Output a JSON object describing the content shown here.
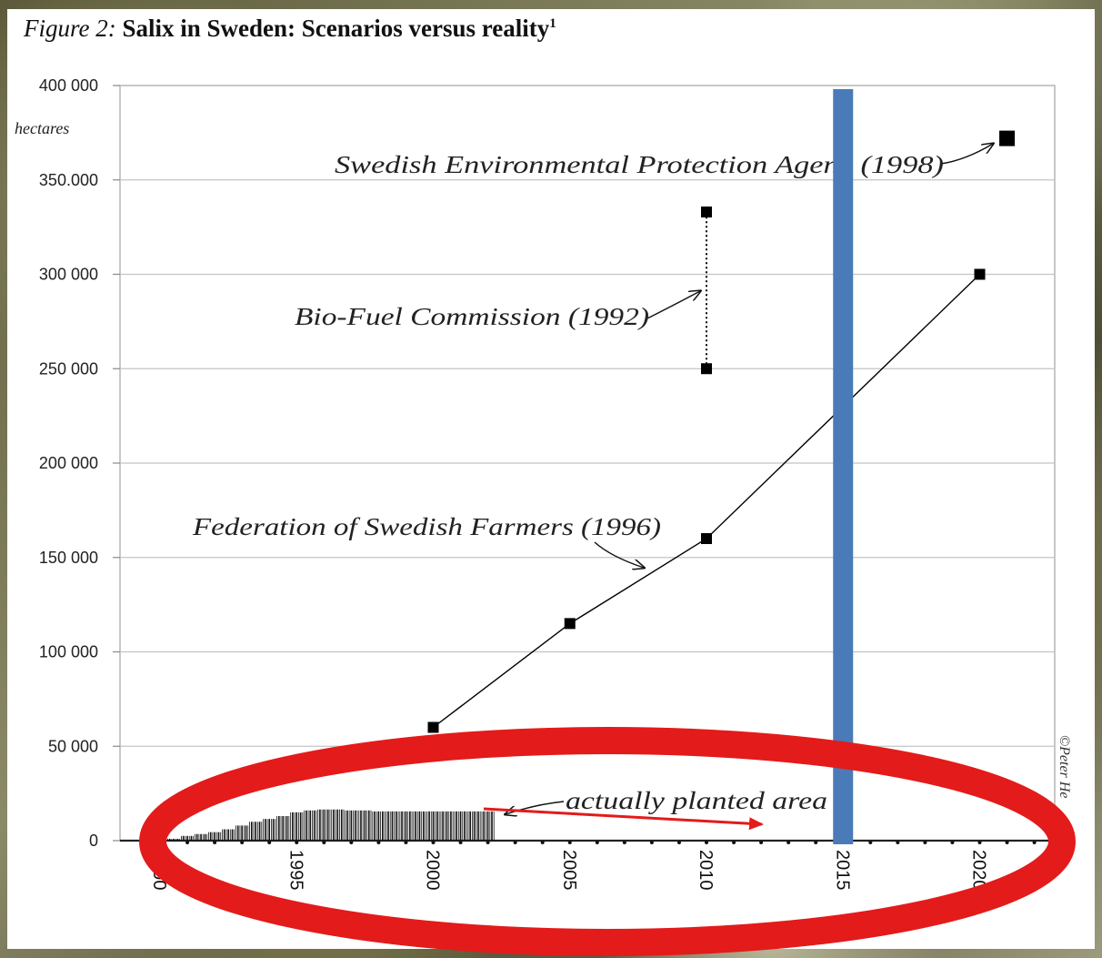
{
  "title": {
    "lead": "Figure 2:",
    "main": "Salix in Sweden: Scenarios versus reality",
    "sup": "1"
  },
  "chart_data": {
    "type": "line",
    "title": "Figure 2: Salix in Sweden: Scenarios versus reality",
    "ylabel": "hectares",
    "xlabel": "",
    "xlim": [
      1990,
      2022
    ],
    "ylim": [
      0,
      400000
    ],
    "y_ticks": [
      {
        "value": 0,
        "label": "0"
      },
      {
        "value": 50000,
        "label": "50 000"
      },
      {
        "value": 100000,
        "label": "100 000"
      },
      {
        "value": 150000,
        "label": "150 000"
      },
      {
        "value": 200000,
        "label": "200 000"
      },
      {
        "value": 250000,
        "label": "250 000"
      },
      {
        "value": 300000,
        "label": "300 000"
      },
      {
        "value": 350000,
        "label": "350.000"
      },
      {
        "value": 400000,
        "label": "400 000"
      }
    ],
    "x_ticks": [
      {
        "value": 1990,
        "label": "1990"
      },
      {
        "value": 1995,
        "label": "1995"
      },
      {
        "value": 2000,
        "label": "2000"
      },
      {
        "value": 2005,
        "label": "2005"
      },
      {
        "value": 2010,
        "label": "2010"
      },
      {
        "value": 2015,
        "label": "2015"
      },
      {
        "value": 2020,
        "label": "2020"
      }
    ],
    "grid": true,
    "series": [
      {
        "name": "Federation of Swedish Farmers (1996)",
        "type": "line",
        "color": "#000000",
        "points": [
          [
            2000,
            60000
          ],
          [
            2005,
            115000
          ],
          [
            2010,
            160000
          ],
          [
            2020,
            300000
          ]
        ]
      },
      {
        "name": "Bio-Fuel Commission (1992)",
        "type": "range",
        "color": "#000000",
        "points": [
          [
            2010,
            250000
          ],
          [
            2010,
            333000
          ]
        ]
      },
      {
        "name": "Swedish Environmental Protection Agency (1998)",
        "type": "point",
        "color": "#000000",
        "points": [
          [
            2021,
            372000
          ]
        ]
      },
      {
        "name": "actually planted area",
        "type": "bar",
        "color": "#000000",
        "points": [
          [
            1990.5,
            1000
          ],
          [
            1991,
            2500
          ],
          [
            1991.5,
            3500
          ],
          [
            1992,
            4500
          ],
          [
            1992.5,
            6000
          ],
          [
            1993,
            8000
          ],
          [
            1993.5,
            10000
          ],
          [
            1994,
            11500
          ],
          [
            1994.5,
            13000
          ],
          [
            1995,
            15000
          ],
          [
            1995.5,
            16000
          ],
          [
            1996,
            16500
          ],
          [
            1996.5,
            16500
          ],
          [
            1997,
            16000
          ],
          [
            1997.5,
            16000
          ],
          [
            1998,
            15500
          ],
          [
            1998.5,
            15500
          ],
          [
            1999,
            15500
          ],
          [
            1999.5,
            15500
          ],
          [
            2000,
            15500
          ],
          [
            2000.5,
            15500
          ],
          [
            2001,
            15500
          ],
          [
            2001.5,
            15500
          ],
          [
            2002,
            15500
          ]
        ]
      }
    ],
    "annotations": [
      {
        "text": "Swedish Environmental Protection Agenc (1998)"
      },
      {
        "text": "Bio-Fuel Commission (1992)"
      },
      {
        "text": "Federation of Swedish Farmers (1996)"
      },
      {
        "text": "actually planted area"
      }
    ],
    "copyright": "©Peter He",
    "overlays": [
      {
        "type": "vertical-line",
        "x": 2015,
        "color": "#4a7ab8"
      },
      {
        "type": "ellipse-highlight",
        "color": "#e31b1b"
      },
      {
        "type": "arrow",
        "color": "#e31b1b"
      }
    ]
  }
}
